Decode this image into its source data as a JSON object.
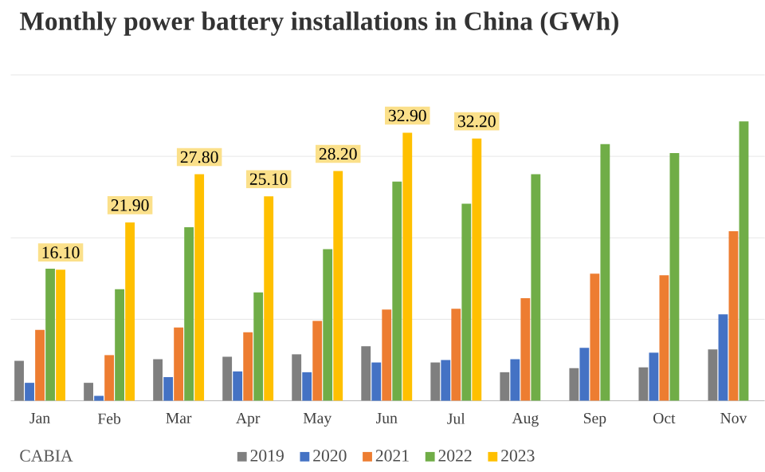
{
  "chart_data": {
    "type": "bar",
    "title": "Monthly power battery installations in China (GWh)",
    "categories": [
      "Jan",
      "Feb",
      "Mar",
      "Apr",
      "May",
      "Jun",
      "Jul",
      "Aug",
      "Sep",
      "Oct",
      "Nov"
    ],
    "series": [
      {
        "name": "2019",
        "color": "#7f7f7f",
        "values": [
          4.9,
          2.2,
          5.1,
          5.4,
          5.7,
          6.7,
          4.7,
          3.5,
          4.0,
          4.1,
          6.3
        ]
      },
      {
        "name": "2020",
        "color": "#4472c4",
        "values": [
          2.2,
          0.6,
          2.9,
          3.6,
          3.5,
          4.7,
          5.0,
          5.1,
          6.5,
          5.9,
          10.6
        ]
      },
      {
        "name": "2021",
        "color": "#ed7d31",
        "values": [
          8.7,
          5.6,
          9.0,
          8.4,
          9.8,
          11.2,
          11.3,
          12.6,
          15.6,
          15.4,
          20.8
        ]
      },
      {
        "name": "2022",
        "color": "#70ad47",
        "values": [
          16.2,
          13.7,
          21.3,
          13.3,
          18.6,
          26.9,
          24.2,
          27.8,
          31.5,
          30.4,
          34.3
        ]
      },
      {
        "name": "2023",
        "color": "#ffc000",
        "values": [
          16.1,
          21.9,
          27.8,
          25.1,
          28.2,
          32.9,
          32.2,
          null,
          null,
          null,
          null
        ],
        "value_labels": [
          "16.10",
          "21.90",
          "27.80",
          "25.10",
          "28.20",
          "32.90",
          "32.20",
          null,
          null,
          null,
          null
        ]
      }
    ],
    "tick_labels": "x",
    "grid": "y",
    "legend": "bottom",
    "annotations": [
      "CABIA"
    ]
  }
}
